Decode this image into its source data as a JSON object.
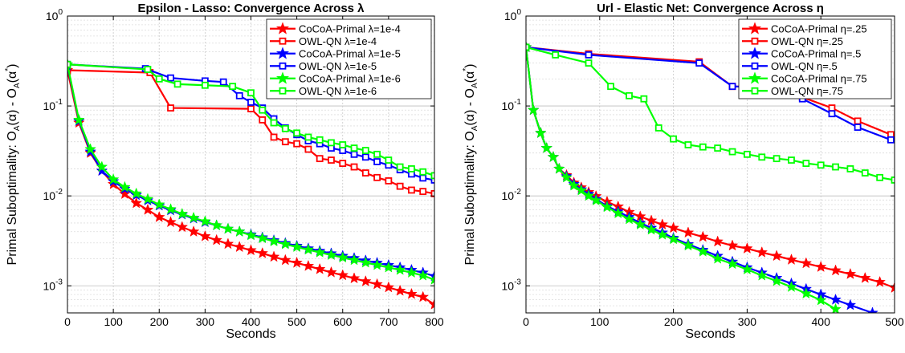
{
  "chart_data": [
    {
      "type": "line",
      "title": "Epsilon - Lasso: Convergence Across λ",
      "xlabel": "Seconds",
      "ylabel": "Primal Suboptimality: O_A(α) - O_A(α*)",
      "xlim": [
        0,
        800
      ],
      "ylim": [
        0.0005,
        1
      ],
      "yscale": "log",
      "xticks": [
        0,
        100,
        200,
        300,
        400,
        500,
        600,
        700,
        800
      ],
      "yticks": [
        {
          "value": 0.001,
          "label": "10^-3"
        },
        {
          "value": 0.01,
          "label": "10^-2"
        },
        {
          "value": 0.1,
          "label": "10^-1"
        },
        {
          "value": 1,
          "label": "10^0"
        }
      ],
      "grid": true,
      "legend_position": "top-right",
      "series": [
        {
          "name": "CoCoA-Primal λ=1e-4",
          "color": "#ff0000",
          "marker": "star",
          "x": [
            0,
            25,
            50,
            75,
            100,
            125,
            150,
            175,
            200,
            225,
            250,
            275,
            300,
            325,
            350,
            375,
            400,
            425,
            450,
            475,
            500,
            525,
            550,
            575,
            600,
            625,
            650,
            675,
            700,
            725,
            750,
            775,
            800
          ],
          "y": [
            0.25,
            0.065,
            0.03,
            0.019,
            0.0135,
            0.0105,
            0.0083,
            0.007,
            0.0058,
            0.0051,
            0.0045,
            0.004,
            0.00355,
            0.00322,
            0.00292,
            0.0027,
            0.00248,
            0.0023,
            0.0021,
            0.00193,
            0.0018,
            0.00166,
            0.00153,
            0.00141,
            0.00131,
            0.00121,
            0.00112,
            0.00104,
            0.00096,
            0.00088,
            0.00081,
            0.00075,
            0.00062
          ]
        },
        {
          "name": "OWL-QN λ=1e-4",
          "color": "#ff0000",
          "marker": "square",
          "x": [
            0,
            180,
            225,
            400,
            425,
            450,
            475,
            500,
            525,
            550,
            575,
            600,
            625,
            650,
            675,
            700,
            725,
            750,
            775,
            800
          ],
          "y": [
            0.25,
            0.235,
            0.095,
            0.093,
            0.07,
            0.045,
            0.04,
            0.038,
            0.033,
            0.026,
            0.025,
            0.023,
            0.021,
            0.018,
            0.016,
            0.0147,
            0.0128,
            0.0116,
            0.0112,
            0.0106
          ]
        },
        {
          "name": "CoCoA-Primal λ=1e-5",
          "color": "#0000ff",
          "marker": "star",
          "x": [
            0,
            25,
            50,
            75,
            100,
            125,
            150,
            175,
            200,
            225,
            250,
            275,
            300,
            325,
            350,
            375,
            400,
            425,
            450,
            475,
            500,
            525,
            550,
            575,
            600,
            625,
            650,
            675,
            700,
            725,
            750,
            775,
            800
          ],
          "y": [
            0.28,
            0.068,
            0.031,
            0.019,
            0.0145,
            0.012,
            0.0102,
            0.0089,
            0.0078,
            0.0069,
            0.0062,
            0.0056,
            0.0051,
            0.0047,
            0.0043,
            0.004,
            0.00372,
            0.00345,
            0.0032,
            0.00298,
            0.00278,
            0.0026,
            0.00244,
            0.00229,
            0.00215,
            0.00203,
            0.00191,
            0.0018,
            0.0017,
            0.0016,
            0.0015,
            0.0014,
            0.00128
          ]
        },
        {
          "name": "OWL-QN λ=1e-5",
          "color": "#0000ff",
          "marker": "square",
          "x": [
            0,
            170,
            225,
            300,
            340,
            375,
            400,
            425,
            450,
            475,
            500,
            525,
            550,
            575,
            600,
            625,
            650,
            675,
            700,
            725,
            750,
            775,
            800
          ],
          "y": [
            0.29,
            0.26,
            0.205,
            0.19,
            0.185,
            0.13,
            0.11,
            0.095,
            0.072,
            0.057,
            0.048,
            0.041,
            0.038,
            0.034,
            0.032,
            0.029,
            0.027,
            0.024,
            0.022,
            0.0195,
            0.0175,
            0.0158,
            0.015
          ]
        },
        {
          "name": "CoCoA-Primal λ=1e-6",
          "color": "#00ff00",
          "marker": "star",
          "x": [
            0,
            25,
            50,
            75,
            100,
            125,
            150,
            175,
            200,
            225,
            250,
            275,
            300,
            325,
            350,
            375,
            400,
            425,
            450,
            475,
            500,
            525,
            550,
            575,
            600,
            625,
            650,
            675,
            700,
            725,
            750,
            775,
            800
          ],
          "y": [
            0.29,
            0.07,
            0.033,
            0.021,
            0.0152,
            0.0125,
            0.0106,
            0.0092,
            0.008,
            0.0071,
            0.0063,
            0.0057,
            0.0052,
            0.0047,
            0.0043,
            0.004,
            0.00365,
            0.00338,
            0.00312,
            0.0029,
            0.0027,
            0.00252,
            0.00235,
            0.0022,
            0.00206,
            0.00193,
            0.00181,
            0.0017,
            0.0016,
            0.0015,
            0.0014,
            0.0013,
            0.00117
          ]
        },
        {
          "name": "OWL-QN λ=1e-6",
          "color": "#00ff00",
          "marker": "square",
          "x": [
            0,
            175,
            200,
            240,
            300,
            360,
            400,
            425,
            450,
            475,
            500,
            525,
            550,
            575,
            600,
            625,
            650,
            675,
            700,
            725,
            750,
            775,
            800
          ],
          "y": [
            0.29,
            0.255,
            0.2,
            0.175,
            0.17,
            0.165,
            0.14,
            0.09,
            0.065,
            0.056,
            0.05,
            0.045,
            0.042,
            0.039,
            0.037,
            0.034,
            0.032,
            0.029,
            0.025,
            0.021,
            0.02,
            0.0185,
            0.0168
          ]
        }
      ]
    },
    {
      "type": "line",
      "title": "Url - Elastic Net: Convergence Across η",
      "xlabel": "Seconds",
      "ylabel": "Primal Suboptimality: O_A(α) - O_A(α*)",
      "xlim": [
        0,
        500
      ],
      "ylim": [
        0.0005,
        1
      ],
      "yscale": "log",
      "xticks": [
        0,
        100,
        200,
        300,
        400,
        500
      ],
      "yticks": [
        {
          "value": 0.001,
          "label": "10^-3"
        },
        {
          "value": 0.01,
          "label": "10^-2"
        },
        {
          "value": 0.1,
          "label": "10^-1"
        },
        {
          "value": 1,
          "label": "10^0"
        }
      ],
      "grid": true,
      "legend_position": "top-right",
      "series": [
        {
          "name": "CoCoA-Primal η=.25",
          "color": "#ff0000",
          "marker": "star",
          "x": [
            0,
            10,
            20,
            28,
            37,
            45,
            55,
            65,
            75,
            85,
            95,
            110,
            125,
            140,
            155,
            170,
            185,
            200,
            220,
            240,
            260,
            280,
            300,
            320,
            340,
            360,
            380,
            400,
            420,
            440,
            460,
            480,
            500
          ],
          "y": [
            0.45,
            0.09,
            0.05,
            0.034,
            0.027,
            0.02,
            0.017,
            0.014,
            0.0124,
            0.011,
            0.0099,
            0.0086,
            0.0076,
            0.0066,
            0.0059,
            0.0053,
            0.0048,
            0.0044,
            0.0039,
            0.0035,
            0.0031,
            0.0028,
            0.0026,
            0.00235,
            0.00215,
            0.00195,
            0.00178,
            0.00162,
            0.00148,
            0.00135,
            0.00122,
            0.0011,
            0.00095
          ]
        },
        {
          "name": "OWL-QN η=.25",
          "color": "#ff0000",
          "marker": "square",
          "x": [
            0,
            85,
            235,
            280,
            345,
            375,
            415,
            450,
            495
          ],
          "y": [
            0.45,
            0.38,
            0.31,
            0.165,
            0.16,
            0.125,
            0.095,
            0.068,
            0.048
          ]
        },
        {
          "name": "CoCoA-Primal η=.5",
          "color": "#0000ff",
          "marker": "star",
          "x": [
            0,
            10,
            20,
            28,
            37,
            45,
            55,
            65,
            75,
            85,
            95,
            110,
            125,
            140,
            155,
            170,
            185,
            200,
            220,
            240,
            260,
            280,
            300,
            320,
            340,
            360,
            380,
            400,
            420,
            440,
            470
          ],
          "y": [
            0.45,
            0.09,
            0.05,
            0.034,
            0.027,
            0.02,
            0.0165,
            0.0135,
            0.0118,
            0.0105,
            0.0092,
            0.0077,
            0.0067,
            0.0058,
            0.005,
            0.0044,
            0.0039,
            0.0034,
            0.0029,
            0.0025,
            0.00215,
            0.00185,
            0.0016,
            0.0014,
            0.00122,
            0.00106,
            0.00092,
            0.0008,
            0.0007,
            0.00061,
            0.0005
          ]
        },
        {
          "name": "OWL-QN η=.5",
          "color": "#0000ff",
          "marker": "square",
          "x": [
            0,
            85,
            235,
            280,
            345,
            375,
            415,
            450,
            495
          ],
          "y": [
            0.45,
            0.37,
            0.3,
            0.165,
            0.16,
            0.12,
            0.082,
            0.058,
            0.042
          ]
        },
        {
          "name": "CoCoA-Primal η=.75",
          "color": "#00ff00",
          "marker": "star",
          "x": [
            0,
            10,
            20,
            28,
            37,
            45,
            55,
            65,
            75,
            85,
            95,
            110,
            125,
            140,
            155,
            170,
            185,
            200,
            220,
            240,
            260,
            280,
            300,
            320,
            340,
            360,
            380,
            400,
            420
          ],
          "y": [
            0.45,
            0.09,
            0.05,
            0.034,
            0.027,
            0.02,
            0.016,
            0.013,
            0.0115,
            0.01,
            0.0089,
            0.0075,
            0.0064,
            0.0055,
            0.0048,
            0.0042,
            0.0037,
            0.0033,
            0.0028,
            0.0024,
            0.002,
            0.00175,
            0.00152,
            0.0013,
            0.00113,
            0.00097,
            0.00082,
            0.00069,
            0.00055
          ]
        },
        {
          "name": "OWL-QN η=.75",
          "color": "#00ff00",
          "marker": "square",
          "x": [
            0,
            40,
            85,
            115,
            140,
            160,
            180,
            200,
            220,
            240,
            260,
            280,
            300,
            320,
            340,
            360,
            380,
            400,
            420,
            440,
            460,
            480,
            500
          ],
          "y": [
            0.45,
            0.37,
            0.3,
            0.165,
            0.13,
            0.12,
            0.057,
            0.043,
            0.037,
            0.035,
            0.034,
            0.031,
            0.029,
            0.027,
            0.026,
            0.025,
            0.023,
            0.022,
            0.021,
            0.02,
            0.018,
            0.016,
            0.015
          ]
        }
      ]
    }
  ]
}
